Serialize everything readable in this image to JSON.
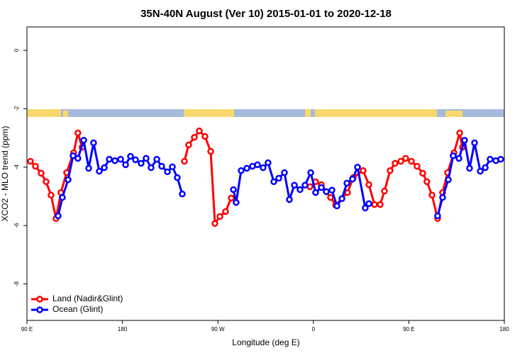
{
  "chart_data": {
    "type": "line",
    "title": "35N-40N August (Ver 10)   2015-01-01 to 2020-12-18",
    "x_label": "Longitude (deg E)",
    "y_label": "XCO2 - MLO trend (ppm)",
    "xlim": [
      90,
      540
    ],
    "xticks": [
      {
        "value": 90,
        "label": "90 E"
      },
      180,
      {
        "value": 270,
        "label": "90 W"
      },
      {
        "value": 360,
        "label": "0"
      },
      {
        "value": 450,
        "label": "90 E"
      },
      {
        "value": 540,
        "label": "180"
      }
    ],
    "ylim": [
      -9.25,
      0.8
    ],
    "yticks": [
      0,
      -2,
      -4,
      -6,
      -8
    ],
    "legend": "bottom-left",
    "series": [
      {
        "name": "Land (Nadir&Glint)",
        "color": "#ff0000",
        "x": [
          93.3,
          98,
          103.4,
          108,
          112.7,
          117.4,
          122,
          127.4,
          134,
          138,
          142,
          null,
          238.4,
          242.4,
          247.8,
          252.5,
          257.8,
          263.2,
          267.2,
          271.9,
          277.2,
          282.6,
          null,
          356.8,
          362.1,
          367.5,
          376.2,
          381,
          392.2,
          397.6,
          406.9,
          412.3,
          417.6,
          423,
          427,
          432.3,
          437,
          442.4,
          447,
          452.4,
          457.7,
          463.1,
          467,
          471.8,
          477.1,
          481.8,
          486.5,
          492.5,
          497.9,
          500.5
        ],
        "values": [
          -3.8,
          -3.97,
          -4.21,
          -4.5,
          -4.96,
          -5.76,
          -4.87,
          -4.19,
          -3.51,
          -2.83,
          -3.32,
          null,
          -3.8,
          -3.24,
          -2.98,
          -2.76,
          -2.95,
          -3.46,
          -5.93,
          -5.69,
          -5.52,
          -5.06,
          null,
          -4.67,
          -4.5,
          -4.6,
          -5.04,
          -5.3,
          -4.87,
          -4.36,
          -4.12,
          -4.6,
          -5.28,
          -5.28,
          -4.82,
          -4.12,
          -3.87,
          -3.8,
          -3.7,
          -3.8,
          -3.97,
          -4.21,
          -4.5,
          -4.96,
          -5.76,
          -4.87,
          -4.19,
          -3.51,
          -2.83,
          -3.32
        ]
      },
      {
        "name": "Ocean (Glint)",
        "color": "#0000ff",
        "x": [
          119.4,
          123.4,
          128.8,
          133.5,
          138,
          143.5,
          148.2,
          152.8,
          158.2,
          162.9,
          167.6,
          172.9,
          178.3,
          183,
          187.6,
          192.3,
          197.6,
          202.3,
          207,
          212.4,
          217,
          222.4,
          227.1,
          231.7,
          236.4,
          null,
          284.6,
          287.2,
          291.9,
          297.3,
          302.6,
          307.3,
          312.6,
          317.3,
          322.7,
          327.4,
          332.7,
          337.4,
          342.1,
          347.4,
          352.1,
          357.5,
          362.1,
          367.5,
          372.2,
          377.5,
          382.2,
          386.9,
          391.6,
          396.9,
          401.6,
          408.9,
          412.3,
          null,
          477.1,
          481.8,
          487.2,
          491.8,
          497.2,
          502.5,
          507.2,
          511.9,
          517.3,
          522,
          526.6,
          532,
          536.6
        ],
        "values": [
          -5.67,
          -5.04,
          -4.43,
          -3.61,
          -3.7,
          -3.08,
          -4.04,
          -3.17,
          -4.14,
          -4.02,
          -3.73,
          -3.78,
          -3.73,
          -3.92,
          -3.63,
          -3.75,
          -3.87,
          -3.7,
          -4.02,
          -3.73,
          -3.97,
          -4.16,
          -3.99,
          -4.36,
          -4.92,
          null,
          -4.77,
          -5.21,
          -4.12,
          -4.04,
          -3.97,
          -3.92,
          -4.02,
          -3.85,
          -4.5,
          -4.38,
          -4.19,
          -5.11,
          -4.62,
          -4.77,
          -4.62,
          -4.19,
          -4.87,
          -4.7,
          -4.84,
          -4.79,
          -5.33,
          -5.08,
          -4.55,
          -4.41,
          -4.0,
          -5.4,
          -5.25,
          null,
          -5.67,
          -5.04,
          -4.43,
          -3.61,
          -3.7,
          -3.08,
          -4.04,
          -3.17,
          -4.14,
          -4.02,
          -3.73,
          -3.78,
          -3.73
        ]
      }
    ]
  }
}
